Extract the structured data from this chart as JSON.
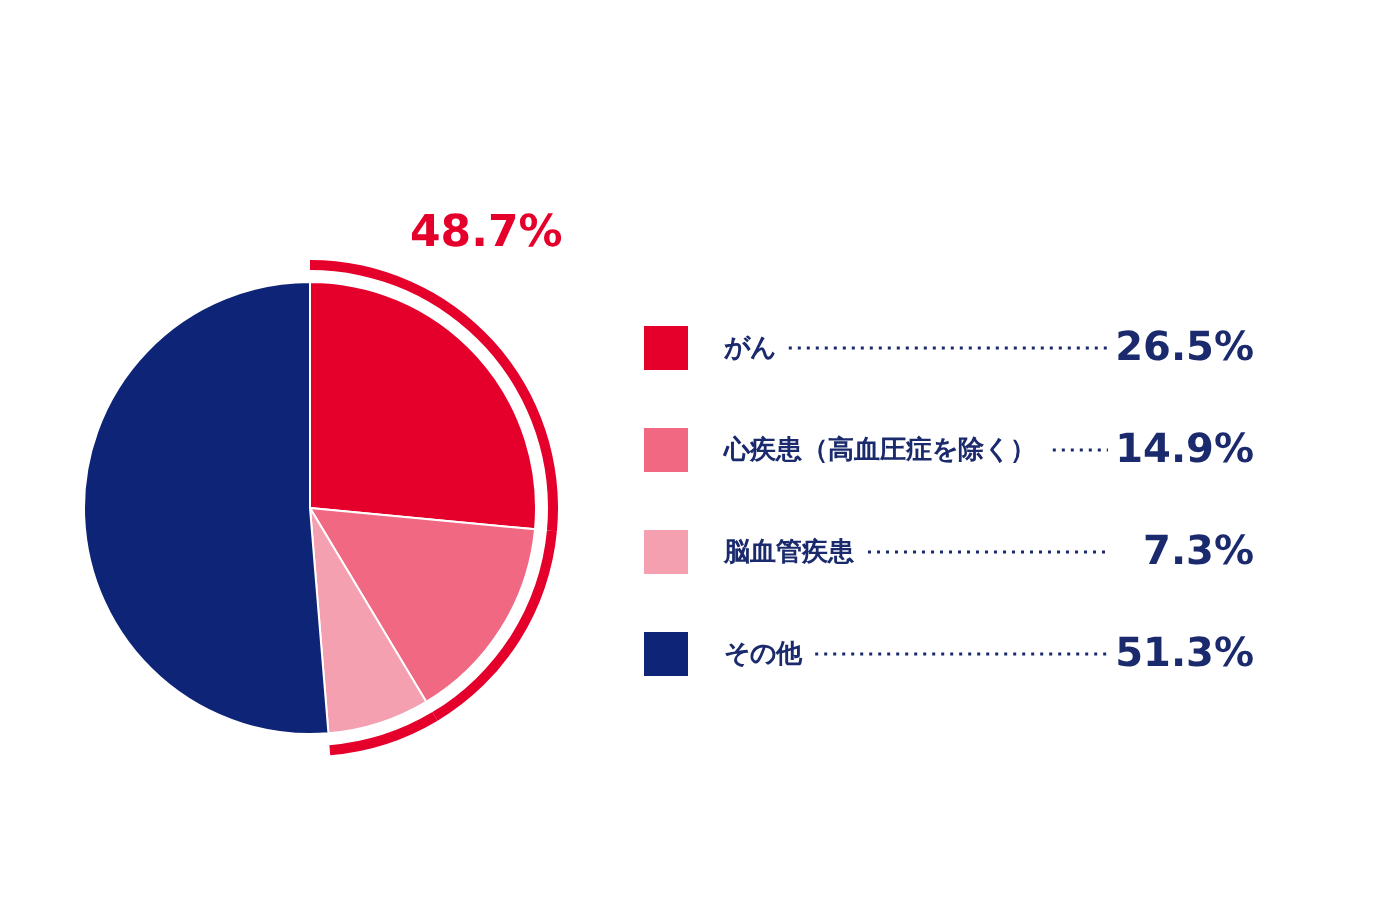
{
  "chart_data": {
    "type": "pie",
    "categories": [
      "がん",
      "心疾患（高血圧症を除く）",
      "脳血管疾患",
      "その他"
    ],
    "values": [
      26.5,
      14.9,
      7.3,
      51.3
    ],
    "colors": [
      "#e4002b",
      "#f06882",
      "#f4a0b0",
      "#0e2577"
    ],
    "value_labels": [
      "26.5%",
      "14.9%",
      "7.3%",
      "51.3%"
    ],
    "annotations": [
      "48.7%"
    ],
    "legend": "right"
  }
}
